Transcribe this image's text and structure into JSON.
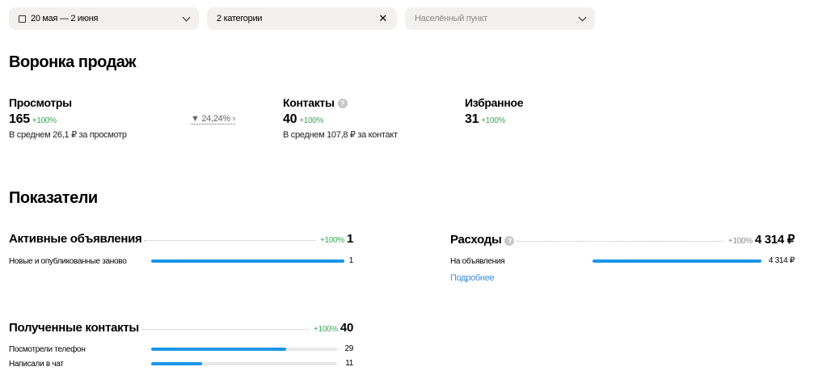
{
  "filters": {
    "date": "20 мая — 2 июня",
    "categories": "2 категории",
    "city_placeholder": "Населённый пункт"
  },
  "funnel": {
    "title": "Воронка продаж",
    "views": {
      "label": "Просмотры",
      "value": "165",
      "change": "+100%",
      "sub": "В среднем 26,1 ₽ за просмотр"
    },
    "conversion": "24,24%",
    "contacts": {
      "label": "Контакты",
      "value": "40",
      "change": "+100%",
      "sub": "В среднем 107,8 ₽ за контакт"
    },
    "favorites": {
      "label": "Избранное",
      "value": "31",
      "change": "+100%"
    }
  },
  "indicators": {
    "title": "Показатели",
    "active_ads": {
      "title": "Активные объявления",
      "change": "+100%",
      "value": "1",
      "rows": [
        {
          "label": "Новые и опубликованные заново",
          "value": "1",
          "fraction": 1.0
        }
      ]
    },
    "expenses": {
      "title": "Расходы",
      "change": "+100%",
      "value": "4 314 ₽",
      "rows": [
        {
          "label": "На объявления",
          "value": "4 314 ₽",
          "fraction": 1.0
        }
      ],
      "more_link": "Подробнее"
    },
    "contacts": {
      "title": "Полученные контакты",
      "change": "+100%",
      "value": "40",
      "rows": [
        {
          "label": "Посмотрели телефон",
          "value": "29",
          "fraction": 0.725
        },
        {
          "label": "Написали в чат",
          "value": "11",
          "fraction": 0.275
        }
      ]
    }
  },
  "colors": {
    "accent": "#1a96e8",
    "positive": "#3aa757",
    "link": "#3b8de0"
  }
}
